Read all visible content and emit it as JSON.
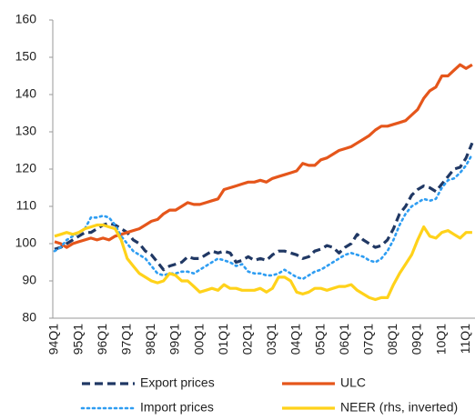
{
  "chart_data": {
    "type": "line",
    "categories": [
      "94Q1",
      null,
      null,
      null,
      "95Q1",
      null,
      null,
      null,
      "96Q1",
      null,
      null,
      null,
      "97Q1",
      null,
      null,
      null,
      "98Q1",
      null,
      null,
      null,
      "99Q1",
      null,
      null,
      null,
      "00Q1",
      null,
      null,
      null,
      "01Q1",
      null,
      null,
      null,
      "02Q1",
      null,
      null,
      null,
      "03Q1",
      null,
      null,
      null,
      "04Q1",
      null,
      null,
      null,
      "05Q1",
      null,
      null,
      null,
      "06Q1",
      null,
      null,
      null,
      "07Q1",
      null,
      null,
      null,
      "08Q1",
      null,
      null,
      null,
      "09Q1",
      null,
      null,
      null,
      "10Q1",
      null,
      null,
      null,
      "11Q1",
      null
    ],
    "ylim": [
      80,
      160
    ],
    "yticks": [
      80,
      90,
      100,
      110,
      120,
      130,
      140,
      150,
      160
    ],
    "series": [
      {
        "name": "Export prices",
        "color": "#203864",
        "dash": "9,5",
        "width": 3.2,
        "values": [
          98.5,
          99,
          100,
          101,
          102,
          103,
          103,
          104,
          105,
          105.5,
          105,
          104,
          103,
          101,
          100,
          98,
          97,
          95,
          93,
          94,
          94.5,
          95,
          96.5,
          96,
          96,
          97,
          98,
          97.5,
          98,
          97.5,
          95,
          95.5,
          96.5,
          95.5,
          96,
          95.5,
          97,
          98,
          98,
          97.5,
          97,
          96,
          96.5,
          98,
          98.5,
          99.5,
          99,
          97.5,
          99,
          100,
          102.5,
          101,
          100,
          99,
          99.5,
          101,
          104,
          108,
          110,
          113,
          114.5,
          115.5,
          115,
          114,
          116,
          118,
          120,
          120.5,
          123,
          127
        ]
      },
      {
        "name": "ULC",
        "color": "#e5561b",
        "dash": "",
        "width": 3.2,
        "values": [
          100.5,
          100,
          99,
          100,
          100.5,
          101,
          101.5,
          101,
          101.5,
          101,
          102,
          102.5,
          103,
          103.5,
          104,
          105,
          106,
          106.5,
          108,
          109,
          109,
          110,
          111,
          110.5,
          110.5,
          111,
          111.5,
          112,
          114.5,
          115,
          115.5,
          116,
          116.5,
          116.5,
          117,
          116.5,
          117.5,
          118,
          118.5,
          119,
          119.5,
          121.5,
          121,
          121,
          122.5,
          123,
          124,
          125,
          125.5,
          126,
          127,
          128,
          129,
          130.5,
          131.5,
          131.5,
          132,
          132.5,
          133,
          134.5,
          136,
          139,
          141,
          142,
          145,
          145,
          146.5,
          148,
          147,
          148
        ]
      },
      {
        "name": "Import prices",
        "color": "#2e9df2",
        "dash": "2,4",
        "width": 2.6,
        "values": [
          98,
          99,
          101,
          102,
          103,
          104,
          107,
          107,
          107.5,
          107,
          105,
          102,
          100,
          98,
          97,
          96,
          94,
          92,
          91.5,
          92,
          92,
          92.5,
          92.5,
          92,
          93,
          94,
          95,
          96,
          95.5,
          95,
          94,
          94.5,
          92.5,
          92,
          92,
          91.5,
          91.5,
          92,
          93,
          92,
          91,
          90.5,
          91.5,
          92.5,
          93,
          94,
          95,
          96,
          97,
          97.5,
          97,
          96.5,
          95.5,
          95,
          96,
          98,
          101,
          105,
          108,
          110,
          111,
          112,
          111.5,
          112,
          115,
          117,
          117.5,
          119,
          121,
          124
        ]
      },
      {
        "name": "NEER (rhs, inverted)",
        "color": "#ffd21a",
        "dash": "",
        "width": 3.2,
        "values": [
          102,
          102.5,
          103,
          102.5,
          103,
          104,
          104.5,
          105,
          105,
          104.5,
          104,
          101,
          96,
          94,
          92,
          91,
          90,
          89.5,
          90,
          92,
          91.5,
          90,
          90,
          88.5,
          87,
          87.5,
          88,
          87.5,
          89,
          88,
          88,
          87.5,
          87.5,
          87.5,
          88,
          87,
          88,
          91,
          91,
          90,
          87,
          86.5,
          87,
          88,
          88,
          87.5,
          88,
          88.5,
          88.5,
          89,
          87.5,
          86.5,
          85.5,
          85,
          85.5,
          85.5,
          89,
          92,
          94.5,
          97,
          101,
          104.5,
          102,
          101.5,
          103,
          103.5,
          102.5,
          101.5,
          103,
          103
        ]
      }
    ]
  }
}
